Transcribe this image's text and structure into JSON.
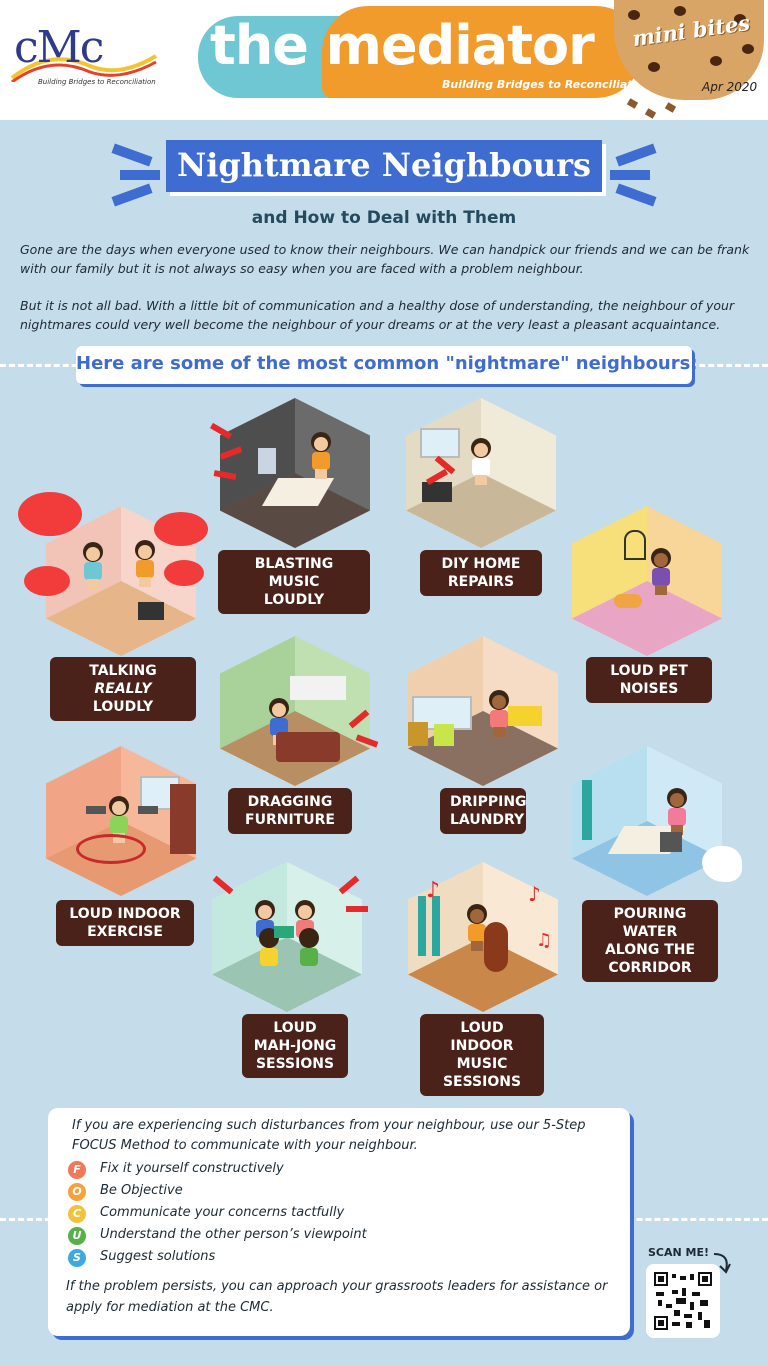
{
  "header": {
    "logo_text": "cMc",
    "logo_tagline": "Building Bridges to Reconciliation",
    "title": "the mediator",
    "title_tagline": "Building Bridges to Reconciliation",
    "badge": "mini bites",
    "date": "Apr 2020"
  },
  "banner": {
    "title": "Nightmare Neighbours",
    "subtitle": "and How to Deal with Them"
  },
  "intro": {
    "p1": "Gone are the days when everyone used to know their neighbours. We can handpick our friends and we can be frank with our family but it is not always so easy when you are faced with a problem neighbour.",
    "p2": "But it is not all bad. With a little bit of communication and a healthy dose of understanding, the neighbour of your nightmares could very well become the neighbour of your dreams or at the very least a pleasant acquaintance."
  },
  "list_heading": "Here are some of the most common \"nightmare\" neighbours:",
  "neighbours": [
    {
      "label_1": "BLASTING MUSIC",
      "label_2": "LOUDLY",
      "icon": "music-speaker-icon"
    },
    {
      "label_1": "DIY HOME",
      "label_2": "REPAIRS",
      "icon": "hammer-icon"
    },
    {
      "label_1": "TALKING",
      "label_em": "REALLY",
      "label_2": "LOUDLY",
      "icon": "speech-bubble-icon"
    },
    {
      "label_1": "LOUD PET",
      "label_2": "NOISES",
      "icon": "pet-cat-icon"
    },
    {
      "label_1": "DRAGGING",
      "label_2": "FURNITURE",
      "icon": "sofa-icon"
    },
    {
      "label_1": "DRIPPING",
      "label_2": "LAUNDRY",
      "icon": "laundry-icon"
    },
    {
      "label_1": "LOUD INDOOR",
      "label_2": "EXERCISE",
      "icon": "dumbbell-icon"
    },
    {
      "label_1": "POURING",
      "label_2": "WATER",
      "label_3": "ALONG THE",
      "label_4": "CORRIDOR",
      "icon": "water-bucket-icon"
    },
    {
      "label_1": "LOUD",
      "label_2": "MAH-JONG",
      "label_3": "SESSIONS",
      "icon": "mahjong-tile-icon"
    },
    {
      "label_1": "LOUD INDOOR",
      "label_2": "MUSIC",
      "label_3": "SESSIONS",
      "icon": "cello-icon"
    }
  ],
  "focus": {
    "intro": "If you are experiencing such disturbances from your neighbour, use our 5-Step FOCUS Method to communicate with your neighbour.",
    "steps": [
      {
        "letter": "F",
        "text": "Fix it yourself constructively",
        "color": "#f2785a"
      },
      {
        "letter": "O",
        "text": "Be Objective",
        "color": "#f5a23a"
      },
      {
        "letter": "C",
        "text": "Communicate your concerns tactfully",
        "color": "#f2c23a"
      },
      {
        "letter": "U",
        "text": "Understand the other person’s viewpoint",
        "color": "#58b04a"
      },
      {
        "letter": "S",
        "text": "Suggest solutions",
        "color": "#3ea9e0"
      }
    ],
    "outro": "If the problem persists, you can approach your grassroots leaders for assistance or apply  for mediation at the CMC."
  },
  "scan_label": "SCAN ME!",
  "colors": {
    "background": "#c5dcea",
    "accent_blue": "#3e6cd1",
    "label_brown": "#4a2219",
    "title_orange": "#f19b2c",
    "title_teal": "#6ec7d3"
  }
}
